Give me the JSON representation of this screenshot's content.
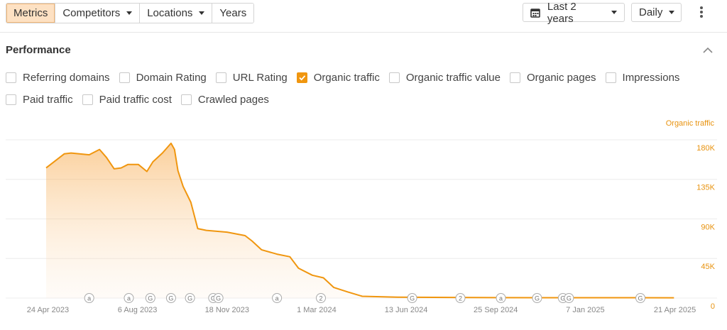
{
  "toolbar": {
    "tabs": [
      {
        "label": "Metrics",
        "active": true,
        "dropdown": false
      },
      {
        "label": "Competitors",
        "active": false,
        "dropdown": true
      },
      {
        "label": "Locations",
        "active": false,
        "dropdown": true
      },
      {
        "label": "Years",
        "active": false,
        "dropdown": false
      }
    ],
    "date_range": "Last 2 years",
    "granularity": "Daily"
  },
  "section": {
    "title": "Performance",
    "options": [
      [
        {
          "label": "Referring domains",
          "checked": false
        },
        {
          "label": "Domain Rating",
          "checked": false
        },
        {
          "label": "URL Rating",
          "checked": false
        },
        {
          "label": "Organic traffic",
          "checked": true
        },
        {
          "label": "Organic traffic value",
          "checked": false
        },
        {
          "label": "Organic pages",
          "checked": false
        },
        {
          "label": "Impressions",
          "checked": false
        }
      ],
      [
        {
          "label": "Paid traffic",
          "checked": false
        },
        {
          "label": "Paid traffic cost",
          "checked": false
        },
        {
          "label": "Crawled pages",
          "checked": false
        }
      ]
    ]
  },
  "chart_data": {
    "type": "area",
    "axis_label": "Organic traffic",
    "color": "#f0960f",
    "grid": true,
    "x": [
      "2023-04-22",
      "2023-05-13",
      "2023-05-21",
      "2023-06-11",
      "2023-06-23",
      "2023-07-01",
      "2023-07-10",
      "2023-07-18",
      "2023-07-26",
      "2023-08-07",
      "2023-08-17",
      "2023-08-24",
      "2023-09-04",
      "2023-09-14",
      "2023-09-18",
      "2023-09-22",
      "2023-09-28",
      "2023-10-07",
      "2023-10-15",
      "2023-10-25",
      "2023-11-18",
      "2023-12-09",
      "2023-12-17",
      "2023-12-28",
      "2024-01-15",
      "2024-01-30",
      "2024-02-09",
      "2024-02-25",
      "2024-03-09",
      "2024-03-21",
      "2024-04-06",
      "2024-04-23",
      "2024-06-03",
      "2024-09-26",
      "2025-04-20"
    ],
    "values": [
      148000,
      164000,
      165000,
      163000,
      169000,
      160000,
      147000,
      148000,
      152000,
      152000,
      144000,
      155000,
      165000,
      176000,
      169000,
      145000,
      127000,
      109000,
      79000,
      77000,
      75000,
      71000,
      65000,
      55000,
      50000,
      47000,
      34000,
      26000,
      23000,
      12000,
      7000,
      2000,
      1000,
      500,
      300
    ],
    "xlim": [
      "2023-03-06",
      "2025-06-09"
    ],
    "xticks": [
      {
        "value": "2023-04-24",
        "label": "24 Apr 2023"
      },
      {
        "value": "2023-08-06",
        "label": "6 Aug 2023"
      },
      {
        "value": "2023-11-18",
        "label": "18 Nov 2023"
      },
      {
        "value": "2024-03-01",
        "label": "1 Mar 2024"
      },
      {
        "value": "2024-06-13",
        "label": "13 Jun 2024"
      },
      {
        "value": "2024-09-25",
        "label": "25 Sep 2024"
      },
      {
        "value": "2025-01-07",
        "label": "7 Jan 2025"
      },
      {
        "value": "2025-04-21",
        "label": "21 Apr 2025"
      }
    ],
    "ylim": [
      0,
      190000
    ],
    "yticks": [
      0,
      {
        "value": 45000,
        "label": "45K"
      },
      {
        "value": 90000,
        "label": "90K"
      },
      {
        "value": 135000,
        "label": "135K"
      },
      {
        "value": 180000,
        "label": "180K"
      }
    ],
    "annotations": [
      {
        "x": "2023-06-11",
        "label": "a"
      },
      {
        "x": "2023-07-27",
        "label": "a"
      },
      {
        "x": "2023-08-21",
        "label": "G"
      },
      {
        "x": "2023-09-14",
        "label": "G"
      },
      {
        "x": "2023-10-06",
        "label": "G"
      },
      {
        "x": "2023-11-02",
        "label": "G"
      },
      {
        "x": "2023-11-08",
        "label": "G"
      },
      {
        "x": "2024-01-15",
        "label": "a"
      },
      {
        "x": "2024-03-06",
        "label": "2"
      },
      {
        "x": "2024-06-20",
        "label": "G"
      },
      {
        "x": "2024-08-15",
        "label": "2"
      },
      {
        "x": "2024-10-01",
        "label": "a"
      },
      {
        "x": "2024-11-12",
        "label": "G"
      },
      {
        "x": "2024-12-12",
        "label": "G"
      },
      {
        "x": "2024-12-19",
        "label": "G"
      },
      {
        "x": "2025-03-12",
        "label": "G"
      }
    ]
  }
}
